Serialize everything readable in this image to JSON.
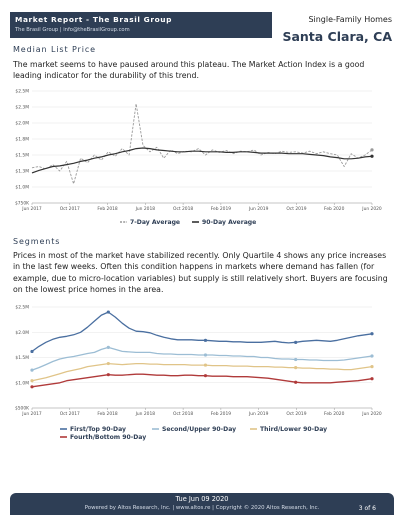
{
  "header": {
    "report_title": "Market Report - The Brasil Group",
    "report_sub": "The Brasil Group | info@theBrasilGroup.com",
    "property_type": "Single-Family Homes",
    "city": "Santa Clara, CA"
  },
  "median": {
    "title": "Median List Price",
    "paragraph": "The market seems to have paused around this plateau. The Market Action Index is a good leading indicator for the durability of this trend."
  },
  "segments": {
    "title": "Segments",
    "paragraph": "Prices in most of the market have stabilized recently. Only Quartile 4 shows any price increases in the last few weeks. Often this condition happens in markets where demand has fallen (for example, due to micro-location variables) but supply is still relatively short. Buyers are focusing on the lowest price homes in the area."
  },
  "footer": {
    "date": "Tue Jun 09 2020",
    "copyright": "Powered by Altos Research, Inc. | www.altos.re | Copyright © 2020 Altos Research, Inc.",
    "page": "3 of 6"
  },
  "chart_data": [
    {
      "type": "line",
      "x_labels": [
        "Jun 2017",
        "Oct 2017",
        "Feb 2018",
        "Jun 2018",
        "Oct 2018",
        "Feb 2019",
        "Jun 2019",
        "Oct 2019",
        "Feb 2020",
        "Jun 2020"
      ],
      "y_ticks": [
        "$750K",
        "$1.0M",
        "$1.3M",
        "$1.5M",
        "$1.8M",
        "$2.0M",
        "$2.3M",
        "$2.5M"
      ],
      "ylim": [
        0.75,
        2.5
      ],
      "legend_position": "bottom",
      "series": [
        {
          "name": "7-Day Average",
          "style": "dashed",
          "color": "#999999",
          "values": [
            1.3,
            1.32,
            1.28,
            1.35,
            1.25,
            1.4,
            1.05,
            1.45,
            1.38,
            1.5,
            1.42,
            1.55,
            1.48,
            1.6,
            1.5,
            2.3,
            1.65,
            1.55,
            1.62,
            1.45,
            1.58,
            1.52,
            1.56,
            1.55,
            1.6,
            1.5,
            1.58,
            1.54,
            1.57,
            1.52,
            1.56,
            1.55,
            1.58,
            1.5,
            1.54,
            1.52,
            1.56,
            1.54,
            1.55,
            1.53,
            1.56,
            1.52,
            1.55,
            1.52,
            1.5,
            1.32,
            1.52,
            1.45,
            1.5,
            1.58
          ]
        },
        {
          "name": "90-Day Average",
          "style": "solid",
          "color": "#333333",
          "values": [
            1.22,
            1.26,
            1.29,
            1.32,
            1.33,
            1.35,
            1.37,
            1.4,
            1.42,
            1.45,
            1.47,
            1.5,
            1.52,
            1.55,
            1.57,
            1.6,
            1.61,
            1.6,
            1.58,
            1.57,
            1.56,
            1.55,
            1.55,
            1.56,
            1.56,
            1.55,
            1.55,
            1.55,
            1.54,
            1.54,
            1.55,
            1.55,
            1.54,
            1.53,
            1.53,
            1.53,
            1.53,
            1.52,
            1.52,
            1.52,
            1.51,
            1.5,
            1.49,
            1.47,
            1.46,
            1.44,
            1.44,
            1.45,
            1.47,
            1.48
          ]
        }
      ]
    },
    {
      "type": "line",
      "x_labels": [
        "Jun 2017",
        "Oct 2017",
        "Feb 2018",
        "Jun 2018",
        "Oct 2018",
        "Feb 2019",
        "Jun 2019",
        "Oct 2019",
        "Feb 2020",
        "Jun 2020"
      ],
      "y_ticks": [
        "$500K",
        "$1.0M",
        "$1.5M",
        "$2.0M",
        "$2.5M"
      ],
      "ylim": [
        0.5,
        2.5
      ],
      "legend_position": "bottom",
      "series": [
        {
          "name": "First/Top 90-Day",
          "color": "#4a6fa0",
          "values": [
            1.62,
            1.72,
            1.8,
            1.86,
            1.9,
            1.92,
            1.95,
            2.0,
            2.1,
            2.22,
            2.34,
            2.4,
            2.3,
            2.18,
            2.08,
            2.02,
            2.01,
            1.99,
            1.94,
            1.9,
            1.87,
            1.85,
            1.85,
            1.85,
            1.84,
            1.84,
            1.83,
            1.82,
            1.82,
            1.81,
            1.81,
            1.8,
            1.8,
            1.8,
            1.81,
            1.82,
            1.8,
            1.79,
            1.8,
            1.82,
            1.83,
            1.84,
            1.83,
            1.82,
            1.84,
            1.87,
            1.9,
            1.93,
            1.95,
            1.97
          ]
        },
        {
          "name": "Second/Upper 90-Day",
          "color": "#9cbdd4",
          "values": [
            1.25,
            1.3,
            1.36,
            1.42,
            1.47,
            1.5,
            1.52,
            1.55,
            1.58,
            1.6,
            1.66,
            1.7,
            1.66,
            1.62,
            1.61,
            1.6,
            1.6,
            1.6,
            1.58,
            1.57,
            1.57,
            1.56,
            1.56,
            1.56,
            1.55,
            1.55,
            1.55,
            1.54,
            1.54,
            1.53,
            1.53,
            1.52,
            1.52,
            1.5,
            1.5,
            1.48,
            1.47,
            1.47,
            1.46,
            1.46,
            1.45,
            1.45,
            1.44,
            1.44,
            1.44,
            1.45,
            1.47,
            1.49,
            1.51,
            1.53
          ]
        },
        {
          "name": "Third/Lower 90-Day",
          "color": "#e0c488",
          "values": [
            1.04,
            1.07,
            1.1,
            1.14,
            1.18,
            1.22,
            1.25,
            1.28,
            1.32,
            1.34,
            1.36,
            1.38,
            1.37,
            1.36,
            1.37,
            1.38,
            1.38,
            1.37,
            1.37,
            1.36,
            1.36,
            1.36,
            1.36,
            1.35,
            1.35,
            1.35,
            1.34,
            1.34,
            1.34,
            1.33,
            1.33,
            1.33,
            1.32,
            1.32,
            1.32,
            1.31,
            1.31,
            1.3,
            1.3,
            1.29,
            1.29,
            1.28,
            1.28,
            1.27,
            1.27,
            1.26,
            1.26,
            1.28,
            1.3,
            1.32
          ]
        },
        {
          "name": "Fourth/Bottom 90-Day",
          "color": "#b03a3a",
          "values": [
            0.92,
            0.94,
            0.96,
            0.98,
            1.0,
            1.04,
            1.06,
            1.08,
            1.1,
            1.12,
            1.14,
            1.16,
            1.15,
            1.15,
            1.16,
            1.17,
            1.17,
            1.16,
            1.15,
            1.15,
            1.14,
            1.14,
            1.15,
            1.15,
            1.14,
            1.14,
            1.13,
            1.13,
            1.13,
            1.12,
            1.12,
            1.12,
            1.11,
            1.1,
            1.09,
            1.07,
            1.05,
            1.03,
            1.01,
            1.0,
            1.0,
            1.0,
            1.0,
            1.0,
            1.01,
            1.02,
            1.03,
            1.04,
            1.06,
            1.08
          ]
        }
      ]
    }
  ]
}
